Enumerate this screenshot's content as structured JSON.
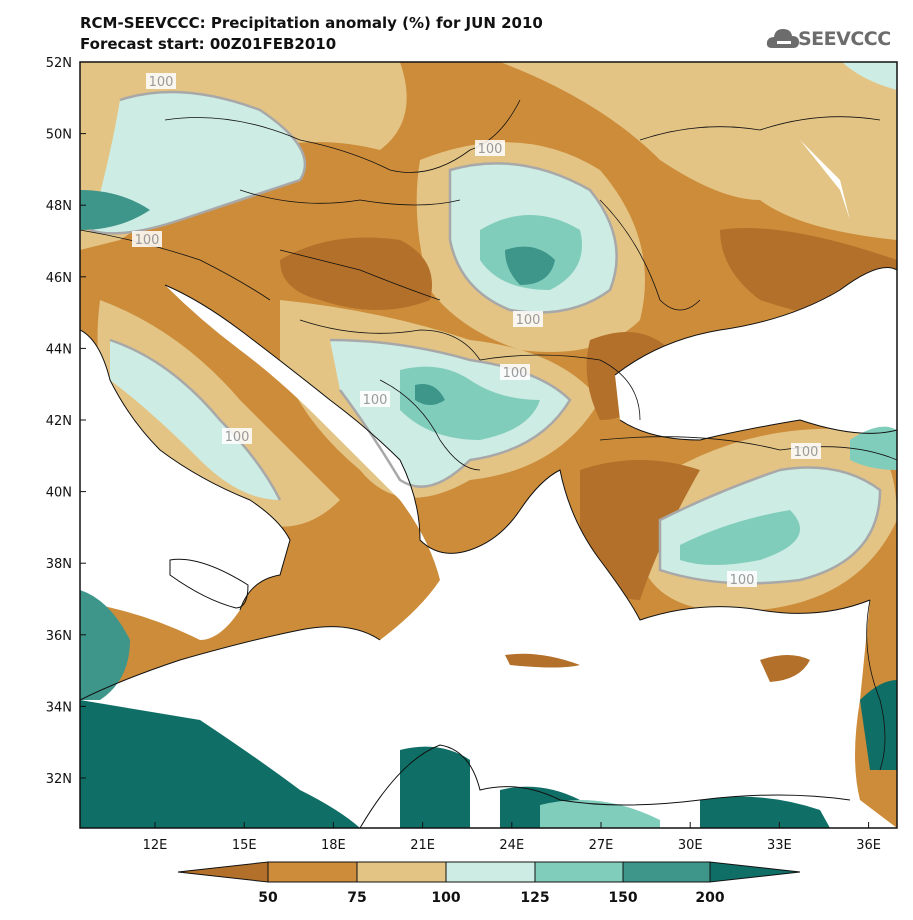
{
  "title_line1": "RCM-SEEVCCC: Precipitation anomaly (%) for JUN 2010",
  "title_line2": "Forecast start: 00Z01FEB2010",
  "logo_text": "SEEVCCC",
  "latitude_labels": [
    "52N",
    "50N",
    "48N",
    "46N",
    "44N",
    "42N",
    "40N",
    "38N",
    "36N",
    "34N",
    "32N"
  ],
  "longitude_labels": [
    "12E",
    "15E",
    "18E",
    "21E",
    "24E",
    "27E",
    "30E",
    "33E",
    "36E"
  ],
  "contour_labels": [
    "100",
    "100",
    "100",
    "100",
    "100",
    "100",
    "100",
    "100",
    "100"
  ],
  "colorbar": {
    "labels": [
      "50",
      "75",
      "100",
      "125",
      "150",
      "200"
    ],
    "colors": [
      "#b3702a",
      "#cc8c3a",
      "#e3c484",
      "#cdece3",
      "#81cdbc",
      "#3e958a",
      "#0f6e66"
    ]
  },
  "land_color": "#ffffff"
}
